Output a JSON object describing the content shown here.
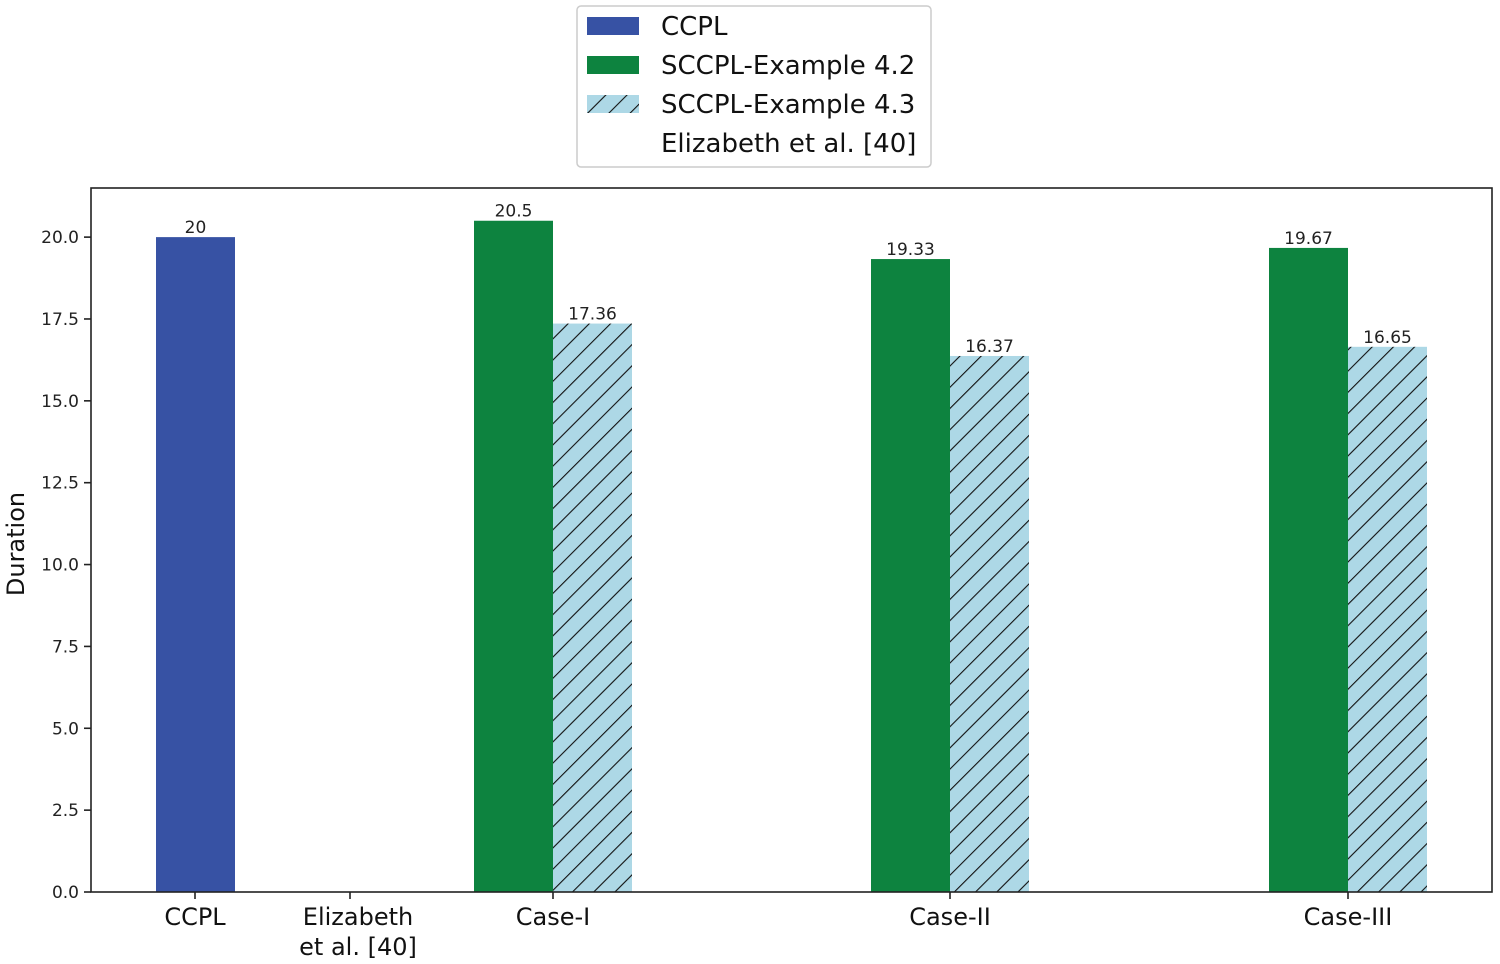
{
  "chart_data": {
    "type": "bar",
    "ylabel": "Duration",
    "ylim": [
      0,
      21.5
    ],
    "yticks": [
      "0.0",
      "2.5",
      "5.0",
      "7.5",
      "10.0",
      "12.5",
      "15.0",
      "17.5",
      "20.0"
    ],
    "categories": [
      "CCPL",
      "Elizabeth et al. [40]",
      "Case-I",
      "Case-II",
      "Case-III"
    ],
    "category_label_lines": [
      [
        "CCPL"
      ],
      [
        "Elizabeth",
        "et al. [40]"
      ],
      [
        "Case-I"
      ],
      [
        "Case-II"
      ],
      [
        "Case-III"
      ]
    ],
    "legend_position": "top-center",
    "series": [
      {
        "name": "CCPL",
        "color": "#3752a4",
        "pattern": "solid",
        "values": [
          20,
          null,
          null,
          null,
          null
        ],
        "labels": [
          "20",
          null,
          null,
          null,
          null
        ]
      },
      {
        "name": "SCCPL-Example 4.2",
        "color": "#0d833f",
        "pattern": "solid",
        "values": [
          null,
          null,
          20.5,
          19.33,
          19.67
        ],
        "labels": [
          null,
          null,
          "20.5",
          "19.33",
          "19.67"
        ]
      },
      {
        "name": "SCCPL-Example 4.3",
        "color": "#add8e6",
        "pattern": "hatch",
        "values": [
          null,
          null,
          17.36,
          16.37,
          16.65
        ],
        "labels": [
          null,
          null,
          "17.36",
          "16.37",
          "16.65"
        ]
      },
      {
        "name": "Elizabeth et al. [40]",
        "color": "#ffffff",
        "pattern": "none",
        "values": [
          null,
          null,
          null,
          null,
          null
        ],
        "labels": [
          null,
          null,
          null,
          null,
          null
        ]
      }
    ]
  }
}
